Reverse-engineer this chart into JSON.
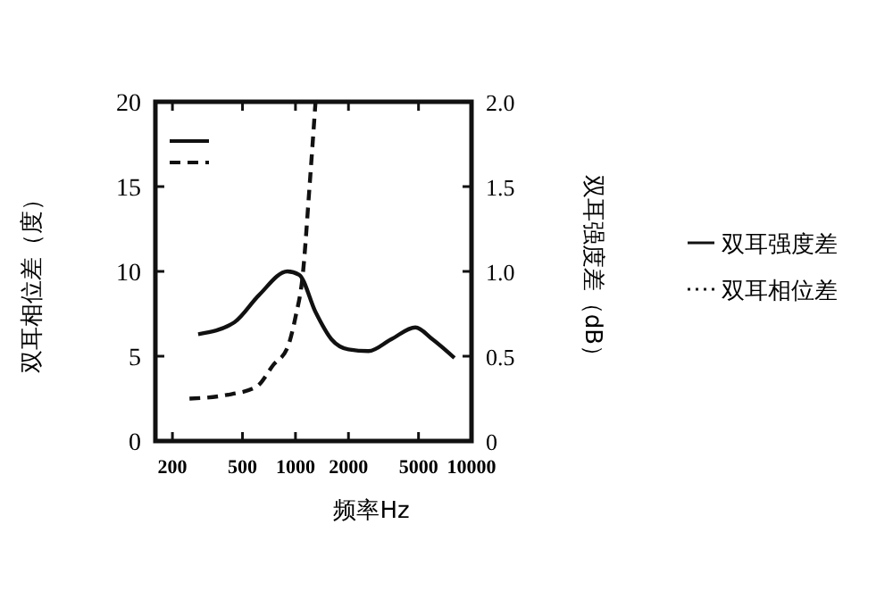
{
  "chart_data": {
    "type": "line",
    "xlabel": "频率Hz",
    "ylabel": "双耳相位差（度）",
    "y2label": "双耳强度差（dB）",
    "log": "x",
    "xlim": [
      160,
      10000
    ],
    "xticks": [
      200,
      500,
      1000,
      2000,
      5000,
      10000
    ],
    "ylim": [
      0,
      20
    ],
    "yticks": [
      0,
      5,
      10,
      15,
      20
    ],
    "y2lim": [
      0,
      2
    ],
    "y2ticks": [
      0,
      {
        "value": 0.5,
        "label": "0.5"
      },
      {
        "value": 1,
        "label": "1.0"
      },
      {
        "value": 1.5,
        "label": "1.5"
      },
      {
        "value": 2,
        "label": "2.0"
      }
    ],
    "legend": "right",
    "grid": false,
    "series": [
      {
        "name": "双耳强度差",
        "color": "#111111",
        "axis": "y2",
        "line_style": "solid",
        "x": [
          280,
          450,
          620,
          900,
          1050,
          1300,
          1600,
          2000,
          2600,
          3500,
          4800,
          6000,
          8000
        ],
        "values": [
          0.63,
          0.7,
          0.86,
          1.0,
          0.98,
          0.76,
          0.6,
          0.54,
          0.53,
          0.6,
          0.67,
          0.6,
          0.49
        ]
      },
      {
        "name": "双耳相位差",
        "color": "#111111",
        "axis": "y",
        "line_style": "dashed",
        "x": [
          250,
          400,
          600,
          750,
          900,
          1000,
          1100,
          1200,
          1300
        ],
        "values": [
          2.5,
          2.7,
          3.2,
          4.5,
          5.5,
          7.3,
          9.8,
          14.9,
          20
        ]
      }
    ]
  }
}
